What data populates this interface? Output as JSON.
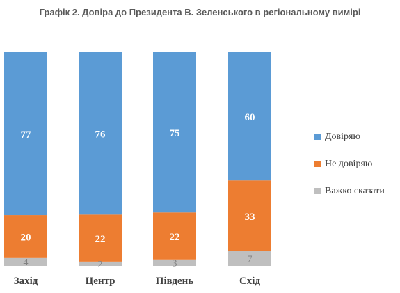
{
  "chart_data": {
    "type": "bar",
    "stacked": true,
    "orientation": "vertical",
    "title": "Графік 2. Довіра до Президента В. Зеленського в регіональному вимірі",
    "categories": [
      "Захід",
      "Центр",
      "Південь",
      "Схід"
    ],
    "series": [
      {
        "name": "Довіряю",
        "values": [
          77,
          76,
          75,
          60
        ],
        "color": "#5b9bd5"
      },
      {
        "name": "Не довіряю",
        "values": [
          20,
          22,
          22,
          33
        ],
        "color": "#ed7d31"
      },
      {
        "name": "Важко сказати",
        "values": [
          4,
          2,
          3,
          7
        ],
        "color": "#bfbfbf"
      }
    ],
    "ylim": [
      0,
      100
    ],
    "grid": false,
    "legend_position": "right"
  }
}
